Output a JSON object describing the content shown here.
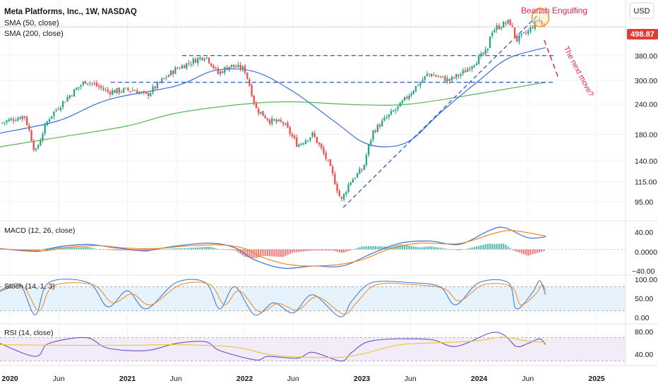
{
  "header": {
    "title": "Meta Platforms, Inc., 1W, NASDAQ",
    "sma50_label": "SMA (50, close)",
    "sma200_label": "SMA (200, close)",
    "currency": "USD"
  },
  "colors": {
    "up": "#22a68a",
    "down": "#ef4b4b",
    "sma50": "#3a6fd8",
    "sma200": "#5cb35c",
    "dashed": "#2f55d4",
    "annotation": "#e0245e",
    "price_badge": "#e33a3a",
    "macd": "#3a6fd8",
    "signal": "#f0861f",
    "stoch_k": "#3a6fd8",
    "stoch_d": "#f0861f",
    "rsi": "#6a4fc8",
    "rsi_ma": "#e8c830"
  },
  "annotations": {
    "bearish": "Bearish Engulfing",
    "next_move": "The next move?"
  },
  "panels": {
    "macd": {
      "label": "MACD (12, 26, close)",
      "ticks": [
        "40.00",
        "0.0000",
        "−40.00"
      ]
    },
    "stoch": {
      "label": "Stoch (14, 1, 3)",
      "ticks": [
        "100.00",
        "50.00",
        "0.00"
      ]
    },
    "rsi": {
      "label": "RSI (14, close)",
      "ticks": [
        "80.00",
        "40.00"
      ]
    }
  },
  "chart_data": {
    "type": "candlestick",
    "title": "Meta Platforms, Inc., 1W, NASDAQ",
    "x_range": [
      "2019-12-01",
      "2025-04-01"
    ],
    "y_scale": "log",
    "y_range": [
      82,
      610
    ],
    "y_ticks": [
      95,
      115,
      140,
      180,
      240,
      300,
      380
    ],
    "x_ticks": [
      {
        "label": "2020",
        "date": "2020-01-01"
      },
      {
        "label": "Jun",
        "date": "2020-06-01"
      },
      {
        "label": "2021",
        "date": "2021-01-01"
      },
      {
        "label": "Jun",
        "date": "2021-06-01"
      },
      {
        "label": "2022",
        "date": "2022-01-01"
      },
      {
        "label": "Jun",
        "date": "2022-06-01"
      },
      {
        "label": "2023",
        "date": "2023-01-01"
      },
      {
        "label": "Jun",
        "date": "2023-06-01"
      },
      {
        "label": "2024",
        "date": "2024-01-01"
      },
      {
        "label": "Jun",
        "date": "2024-06-01"
      },
      {
        "label": "2025",
        "date": "2025-01-01"
      }
    ],
    "last_price": 498.87,
    "price_anchors": [
      [
        "2019-12-01",
        200
      ],
      [
        "2020-02-15",
        215
      ],
      [
        "2020-03-20",
        150
      ],
      [
        "2020-05-01",
        210
      ],
      [
        "2020-08-25",
        300
      ],
      [
        "2020-11-01",
        270
      ],
      [
        "2021-01-20",
        275
      ],
      [
        "2021-03-01",
        260
      ],
      [
        "2021-06-01",
        335
      ],
      [
        "2021-09-01",
        380
      ],
      [
        "2021-10-10",
        320
      ],
      [
        "2021-11-15",
        345
      ],
      [
        "2021-12-31",
        335
      ],
      [
        "2022-02-04",
        230
      ],
      [
        "2022-03-20",
        205
      ],
      [
        "2022-05-01",
        200
      ],
      [
        "2022-06-15",
        162
      ],
      [
        "2022-08-01",
        180
      ],
      [
        "2022-09-15",
        140
      ],
      [
        "2022-10-28",
        95
      ],
      [
        "2022-11-25",
        115
      ],
      [
        "2023-01-05",
        130
      ],
      [
        "2023-02-05",
        185
      ],
      [
        "2023-04-28",
        235
      ],
      [
        "2023-07-28",
        320
      ],
      [
        "2023-10-01",
        300
      ],
      [
        "2023-11-15",
        325
      ],
      [
        "2024-01-30",
        400
      ],
      [
        "2024-02-05",
        475
      ],
      [
        "2024-03-01",
        500
      ],
      [
        "2024-04-05",
        525
      ],
      [
        "2024-04-26",
        440
      ],
      [
        "2024-06-01",
        475
      ],
      [
        "2024-07-05",
        540
      ],
      [
        "2024-07-19",
        495
      ],
      [
        "2024-07-26",
        498.87
      ]
    ],
    "sma50": [
      [
        "2019-12-01",
        182
      ],
      [
        "2020-06-01",
        205
      ],
      [
        "2020-11-01",
        250
      ],
      [
        "2021-06-01",
        285
      ],
      [
        "2021-10-01",
        330
      ],
      [
        "2022-02-01",
        326
      ],
      [
        "2022-06-01",
        270
      ],
      [
        "2022-10-15",
        200
      ],
      [
        "2023-01-01",
        168
      ],
      [
        "2023-03-15",
        160
      ],
      [
        "2023-06-01",
        170
      ],
      [
        "2023-09-01",
        220
      ],
      [
        "2024-01-01",
        300
      ],
      [
        "2024-04-01",
        370
      ],
      [
        "2024-07-26",
        410
      ]
    ],
    "sma200": [
      [
        "2019-12-01",
        160
      ],
      [
        "2020-06-01",
        175
      ],
      [
        "2021-01-01",
        195
      ],
      [
        "2021-06-01",
        220
      ],
      [
        "2022-01-01",
        240
      ],
      [
        "2022-06-01",
        245
      ],
      [
        "2023-01-01",
        238
      ],
      [
        "2023-06-01",
        240
      ],
      [
        "2024-01-01",
        265
      ],
      [
        "2024-07-26",
        295
      ]
    ],
    "horizontal_levels": [
      {
        "price": 380,
        "from": "2021-06-20",
        "to": "2024-08-20"
      },
      {
        "price": 295,
        "from": "2020-11-10",
        "to": "2024-08-20"
      }
    ],
    "trendline": [
      [
        "2022-11-04",
        90
      ],
      [
        "2024-07-12",
        575
      ]
    ],
    "projection": [
      [
        "2024-07-22",
        440
      ],
      [
        "2024-09-05",
        305
      ]
    ],
    "bearish_engulfing_date": "2024-07-10",
    "macd": {
      "range": [
        -55,
        60
      ],
      "line": [
        [
          "2019-12-01",
          2
        ],
        [
          "2020-03-25",
          -5
        ],
        [
          "2020-06-01",
          6
        ],
        [
          "2020-09-01",
          12
        ],
        [
          "2020-12-01",
          3
        ],
        [
          "2021-03-01",
          -2
        ],
        [
          "2021-06-01",
          8
        ],
        [
          "2021-09-15",
          15
        ],
        [
          "2021-12-01",
          4
        ],
        [
          "2022-02-01",
          -25
        ],
        [
          "2022-05-01",
          -45
        ],
        [
          "2022-08-01",
          -40
        ],
        [
          "2022-11-01",
          -40
        ],
        [
          "2023-02-01",
          -10
        ],
        [
          "2023-05-01",
          15
        ],
        [
          "2023-08-01",
          20
        ],
        [
          "2023-11-01",
          12
        ],
        [
          "2024-02-01",
          45
        ],
        [
          "2024-03-20",
          52
        ],
        [
          "2024-06-01",
          28
        ],
        [
          "2024-07-26",
          30
        ]
      ],
      "signal": [
        [
          "2019-12-01",
          1
        ],
        [
          "2020-04-15",
          -3
        ],
        [
          "2020-07-01",
          5
        ],
        [
          "2020-10-01",
          9
        ],
        [
          "2021-01-01",
          3
        ],
        [
          "2021-04-01",
          2
        ],
        [
          "2021-07-01",
          8
        ],
        [
          "2021-10-15",
          11
        ],
        [
          "2022-01-01",
          2
        ],
        [
          "2022-03-01",
          -20
        ],
        [
          "2022-06-01",
          -38
        ],
        [
          "2022-10-01",
          -38
        ],
        [
          "2023-01-01",
          -25
        ],
        [
          "2023-04-01",
          2
        ],
        [
          "2023-07-01",
          15
        ],
        [
          "2023-11-01",
          14
        ],
        [
          "2024-02-15",
          38
        ],
        [
          "2024-04-15",
          45
        ],
        [
          "2024-07-26",
          32
        ]
      ]
    },
    "stochastic": {
      "range": [
        0,
        100
      ],
      "k": [
        [
          "2019-12-01",
          70
        ],
        [
          "2020-02-01",
          85
        ],
        [
          "2020-03-20",
          10
        ],
        [
          "2020-05-01",
          90
        ],
        [
          "2020-09-01",
          90
        ],
        [
          "2020-11-01",
          30
        ],
        [
          "2021-01-01",
          70
        ],
        [
          "2021-03-01",
          25
        ],
        [
          "2021-06-01",
          90
        ],
        [
          "2021-09-01",
          90
        ],
        [
          "2021-10-15",
          25
        ],
        [
          "2021-12-01",
          80
        ],
        [
          "2022-02-01",
          10
        ],
        [
          "2022-04-01",
          40
        ],
        [
          "2022-06-01",
          15
        ],
        [
          "2022-08-01",
          60
        ],
        [
          "2022-10-25",
          5
        ],
        [
          "2022-12-01",
          45
        ],
        [
          "2023-02-01",
          90
        ],
        [
          "2023-06-01",
          90
        ],
        [
          "2023-09-01",
          80
        ],
        [
          "2023-10-20",
          35
        ],
        [
          "2024-01-01",
          90
        ],
        [
          "2024-04-01",
          90
        ],
        [
          "2024-04-26",
          25
        ],
        [
          "2024-06-15",
          65
        ],
        [
          "2024-07-08",
          95
        ],
        [
          "2024-07-26",
          60
        ]
      ],
      "d": [
        [
          "2019-12-01",
          68
        ],
        [
          "2020-02-10",
          80
        ],
        [
          "2020-04-01",
          20
        ],
        [
          "2020-05-15",
          82
        ],
        [
          "2020-09-15",
          85
        ],
        [
          "2020-11-15",
          40
        ],
        [
          "2021-01-15",
          62
        ],
        [
          "2021-03-15",
          35
        ],
        [
          "2021-06-15",
          85
        ],
        [
          "2021-09-15",
          85
        ],
        [
          "2021-10-30",
          35
        ],
        [
          "2021-12-15",
          70
        ],
        [
          "2022-02-15",
          18
        ],
        [
          "2022-04-15",
          38
        ],
        [
          "2022-06-15",
          22
        ],
        [
          "2022-08-15",
          55
        ],
        [
          "2022-11-05",
          12
        ],
        [
          "2022-12-15",
          40
        ],
        [
          "2023-02-15",
          85
        ],
        [
          "2023-06-15",
          85
        ],
        [
          "2023-09-15",
          75
        ],
        [
          "2023-11-01",
          45
        ],
        [
          "2024-01-15",
          85
        ],
        [
          "2024-04-10",
          80
        ],
        [
          "2024-05-10",
          35
        ],
        [
          "2024-06-25",
          62
        ],
        [
          "2024-07-15",
          85
        ],
        [
          "2024-07-26",
          72
        ]
      ],
      "bands": [
        20,
        80
      ]
    },
    "rsi": {
      "range": [
        25,
        90
      ],
      "rsi": [
        [
          "2019-12-01",
          60
        ],
        [
          "2020-03-20",
          38
        ],
        [
          "2020-05-01",
          60
        ],
        [
          "2020-08-25",
          70
        ],
        [
          "2020-11-01",
          52
        ],
        [
          "2021-03-01",
          48
        ],
        [
          "2021-06-01",
          60
        ],
        [
          "2021-09-01",
          63
        ],
        [
          "2021-10-15",
          48
        ],
        [
          "2022-02-04",
          32
        ],
        [
          "2022-03-15",
          38
        ],
        [
          "2022-06-15",
          35
        ],
        [
          "2022-08-01",
          45
        ],
        [
          "2022-10-28",
          30
        ],
        [
          "2022-12-01",
          45
        ],
        [
          "2023-02-05",
          65
        ],
        [
          "2023-07-28",
          67
        ],
        [
          "2023-10-20",
          55
        ],
        [
          "2024-02-05",
          78
        ],
        [
          "2024-03-20",
          74
        ],
        [
          "2024-04-26",
          55
        ],
        [
          "2024-06-01",
          60
        ],
        [
          "2024-07-08",
          68
        ],
        [
          "2024-07-26",
          58
        ]
      ],
      "ma": [
        [
          "2019-12-01",
          58
        ],
        [
          "2020-06-01",
          57
        ],
        [
          "2021-01-01",
          57
        ],
        [
          "2021-06-01",
          58
        ],
        [
          "2021-12-01",
          54
        ],
        [
          "2022-04-01",
          40
        ],
        [
          "2022-10-01",
          36
        ],
        [
          "2023-01-01",
          42
        ],
        [
          "2023-05-01",
          58
        ],
        [
          "2023-10-01",
          62
        ],
        [
          "2024-01-01",
          65
        ],
        [
          "2024-03-15",
          71
        ],
        [
          "2024-06-01",
          64
        ],
        [
          "2024-07-26",
          62
        ]
      ],
      "bands": [
        30,
        70
      ]
    }
  }
}
